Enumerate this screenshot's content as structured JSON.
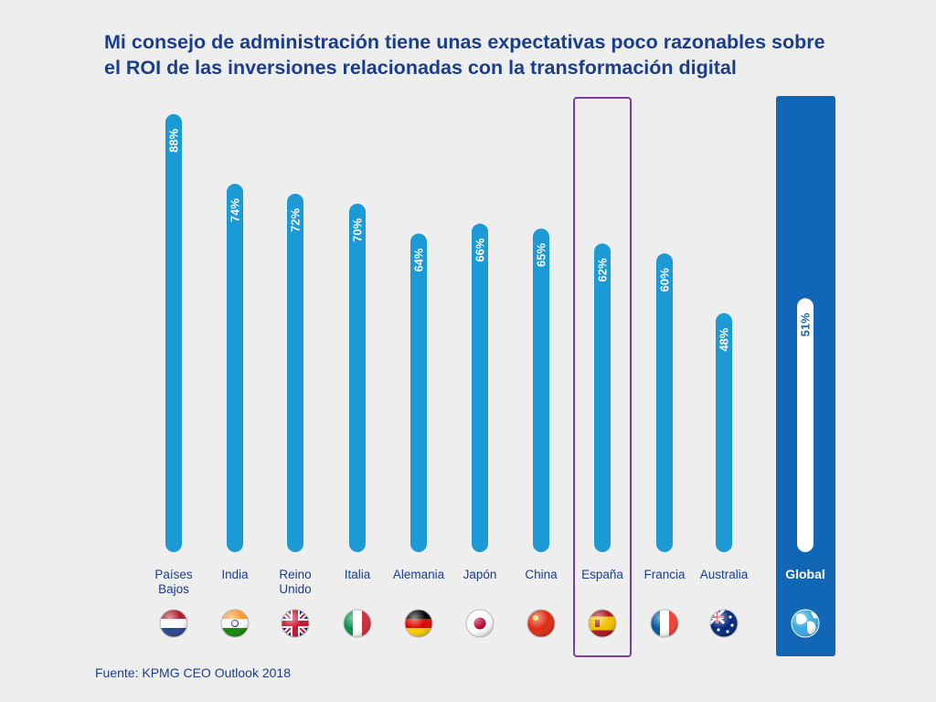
{
  "chart_data": {
    "type": "bar",
    "orientation": "vertical",
    "title_lines": [
      "Mi consejo de administración tiene unas expectativas poco razonables sobre",
      "el ROI de las inversiones relacionadas con la transformación digital"
    ],
    "categories": [
      [
        "Países",
        "Bajos"
      ],
      [
        "India"
      ],
      [
        "Reino",
        "Unido"
      ],
      [
        "Italia"
      ],
      [
        "Alemania"
      ],
      [
        "Japón"
      ],
      [
        "China"
      ],
      [
        "España"
      ],
      [
        "Francia"
      ],
      [
        "Australia"
      ],
      [
        "Global"
      ]
    ],
    "values": [
      88,
      74,
      72,
      70,
      64,
      66,
      65,
      62,
      60,
      48,
      51
    ],
    "value_labels": [
      "88%",
      "74%",
      "72%",
      "70%",
      "64%",
      "66%",
      "65%",
      "62%",
      "60%",
      "48%",
      "51%"
    ],
    "flags": [
      "netherlands-flag-icon",
      "india-flag-icon",
      "uk-flag-icon",
      "italy-flag-icon",
      "germany-flag-icon",
      "japan-flag-icon",
      "china-flag-icon",
      "spain-flag-icon",
      "france-flag-icon",
      "australia-flag-icon",
      "globe-icon"
    ],
    "highlighted_category": "España",
    "global_category": "Global",
    "ylim": [
      0,
      100
    ],
    "grid": false,
    "colors": {
      "bar": "#1c9ad6",
      "global_panel": "#1166b5",
      "global_bar": "#ffffff",
      "highlight_border": "#7b3f98",
      "title": "#1a3e8f",
      "category_label": "#1a3e8f",
      "value_label": "#ffffff",
      "background": "#eeeeee"
    }
  },
  "source": "Fuente: KPMG CEO Outlook 2018"
}
